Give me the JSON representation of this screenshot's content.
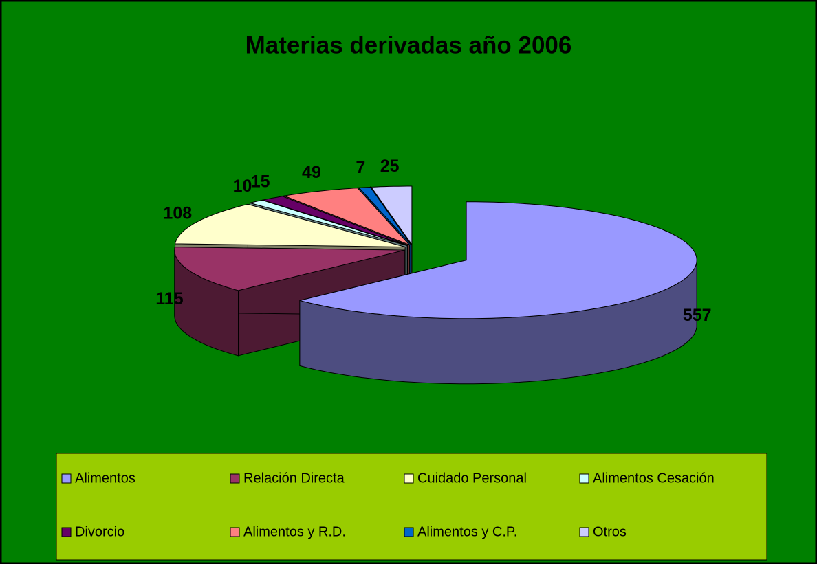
{
  "chart_data": {
    "type": "pie",
    "title": "Materias derivadas año 2006",
    "categories": [
      "Alimentos",
      "Relación Directa",
      "Cuidado Personal",
      "Alimentos Cesación",
      "Divorcio",
      "Alimentos y R.D.",
      "Alimentos y C.P.",
      "Otros"
    ],
    "values": [
      557,
      115,
      108,
      10,
      15,
      49,
      7,
      25
    ],
    "colors": [
      "#9999ff",
      "#993366",
      "#ffffcc",
      "#ccffff",
      "#660066",
      "#ff8080",
      "#0066cc",
      "#ccccff"
    ],
    "legend": "bottom"
  }
}
